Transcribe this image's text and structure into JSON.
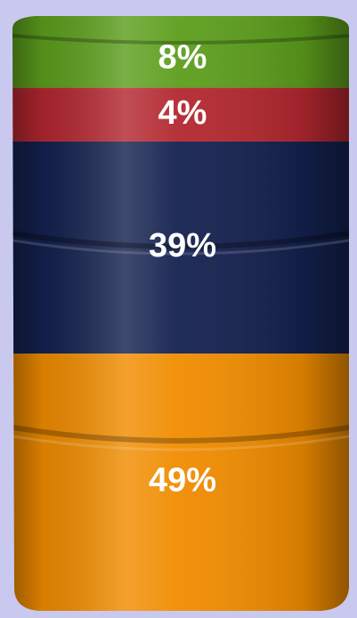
{
  "chart_data": {
    "type": "barrel",
    "values": [
      8,
      4,
      39,
      49
    ],
    "value_labels": [
      "8%",
      "4%",
      "39%",
      "49%"
    ],
    "colors": [
      "#5c9e1c",
      "#b3272f",
      "#14214f",
      "#f08c00"
    ]
  }
}
